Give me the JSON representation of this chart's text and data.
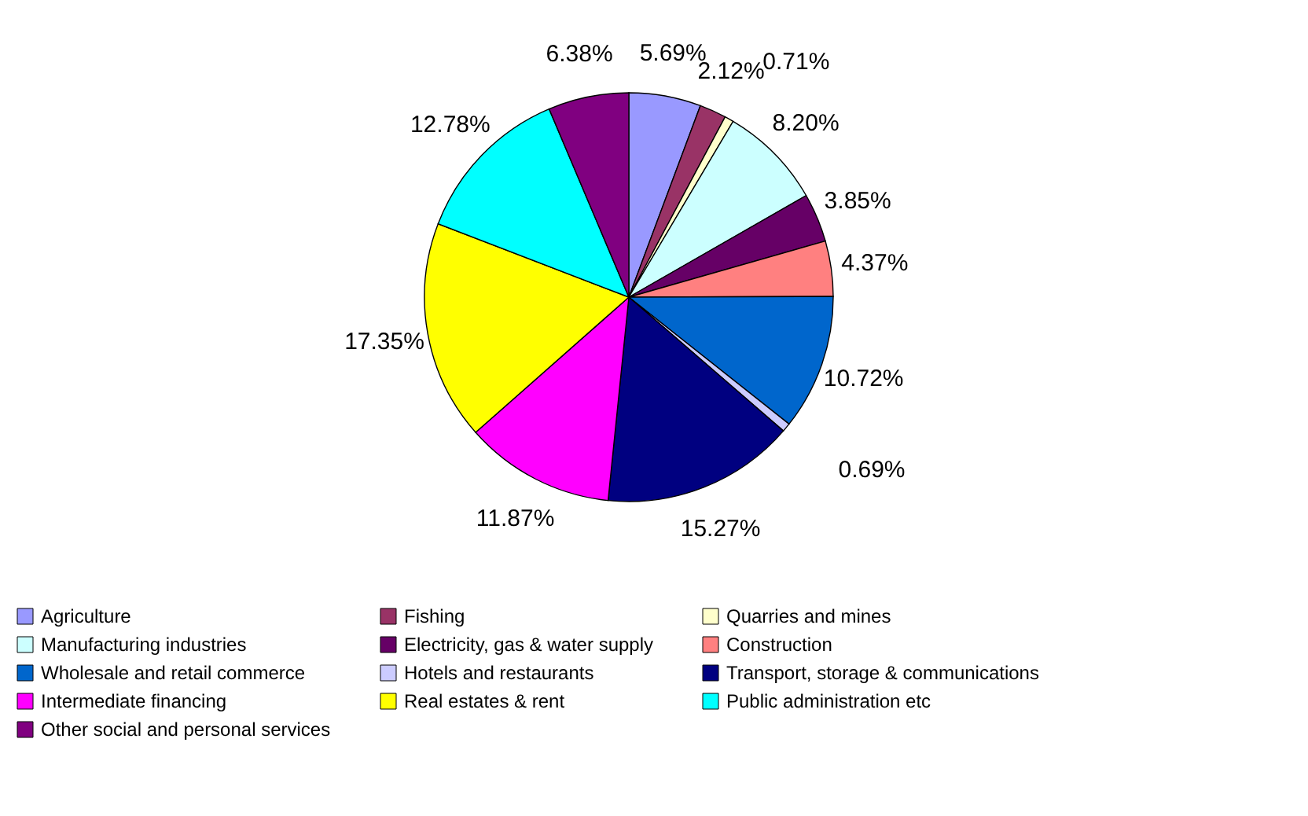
{
  "chart_data": {
    "type": "pie",
    "categories": [
      "Agriculture",
      "Fishing",
      "Quarries and mines",
      "Manufacturing industries",
      "Electricity, gas & water supply",
      "Construction",
      "Wholesale and retail commerce",
      "Hotels and restaurants",
      "Transport, storage & communications",
      "Intermediate financing",
      "Real estates & rent",
      "Public administration etc",
      "Other social and personal services"
    ],
    "values": [
      5.69,
      2.12,
      0.71,
      8.2,
      3.85,
      4.37,
      10.72,
      0.69,
      15.27,
      11.87,
      17.35,
      12.78,
      6.38
    ],
    "value_labels": [
      "5.69%",
      "2.12%",
      "0.71%",
      "8.20%",
      "3.85%",
      "4.37%",
      "10.72%",
      "0.69%",
      "15.27%",
      "11.87%",
      "17.35%",
      "12.78%",
      "6.38%"
    ],
    "colors": [
      "#9999ff",
      "#993366",
      "#ffffcc",
      "#ccffff",
      "#660066",
      "#ff8080",
      "#0066cc",
      "#ccccff",
      "#000080",
      "#ff00ff",
      "#ffff00",
      "#00ffff",
      "#800080"
    ],
    "legend": "bottom"
  }
}
